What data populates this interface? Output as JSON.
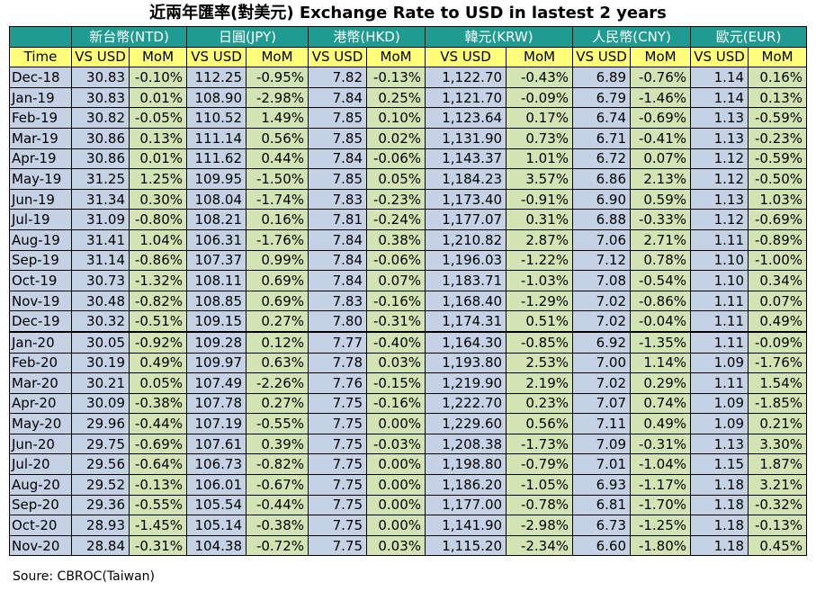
{
  "title": "近兩年匯率(對美元) Exchange Rate to USD in lastest 2 years",
  "source": "Soure: CBROC(Taiwan)",
  "chart_data": {
    "type": "table",
    "time_label": "Time",
    "sub_labels": [
      "VS USD",
      "MoM"
    ],
    "currencies": [
      "新台幣(NTD)",
      "日圓(JPY)",
      "港幣(HKD)",
      "韓元(KRW)",
      "人民幣(CNY)",
      "歐元(EUR)"
    ],
    "rows": [
      [
        "Dec-18",
        "30.83",
        "-0.10%",
        "112.25",
        "-0.95%",
        "7.82",
        "-0.13%",
        "1,122.70",
        "-0.43%",
        "6.89",
        "-0.76%",
        "1.14",
        "0.16%"
      ],
      [
        "Jan-19",
        "30.83",
        "0.01%",
        "108.90",
        "-2.98%",
        "7.84",
        "0.25%",
        "1,121.70",
        "-0.09%",
        "6.79",
        "-1.46%",
        "1.14",
        "0.13%"
      ],
      [
        "Feb-19",
        "30.82",
        "-0.05%",
        "110.52",
        "1.49%",
        "7.85",
        "0.10%",
        "1,123.64",
        "0.17%",
        "6.74",
        "-0.69%",
        "1.13",
        "-0.59%"
      ],
      [
        "Mar-19",
        "30.86",
        "0.13%",
        "111.14",
        "0.56%",
        "7.85",
        "0.02%",
        "1,131.90",
        "0.73%",
        "6.71",
        "-0.41%",
        "1.13",
        "-0.23%"
      ],
      [
        "Apr-19",
        "30.86",
        "0.01%",
        "111.62",
        "0.44%",
        "7.84",
        "-0.06%",
        "1,143.37",
        "1.01%",
        "6.72",
        "0.07%",
        "1.12",
        "-0.59%"
      ],
      [
        "May-19",
        "31.25",
        "1.25%",
        "109.95",
        "-1.50%",
        "7.85",
        "0.05%",
        "1,184.23",
        "3.57%",
        "6.86",
        "2.13%",
        "1.12",
        "-0.50%"
      ],
      [
        "Jun-19",
        "31.34",
        "0.30%",
        "108.04",
        "-1.74%",
        "7.83",
        "-0.23%",
        "1,173.40",
        "-0.91%",
        "6.90",
        "0.59%",
        "1.13",
        "1.03%"
      ],
      [
        "Jul-19",
        "31.09",
        "-0.80%",
        "108.21",
        "0.16%",
        "7.81",
        "-0.24%",
        "1,177.07",
        "0.31%",
        "6.88",
        "-0.33%",
        "1.12",
        "-0.69%"
      ],
      [
        "Aug-19",
        "31.41",
        "1.04%",
        "106.31",
        "-1.76%",
        "7.84",
        "0.38%",
        "1,210.82",
        "2.87%",
        "7.06",
        "2.71%",
        "1.11",
        "-0.89%"
      ],
      [
        "Sep-19",
        "31.14",
        "-0.86%",
        "107.37",
        "0.99%",
        "7.84",
        "-0.06%",
        "1,196.03",
        "-1.22%",
        "7.12",
        "0.78%",
        "1.10",
        "-1.00%"
      ],
      [
        "Oct-19",
        "30.73",
        "-1.32%",
        "108.11",
        "0.69%",
        "7.84",
        "0.07%",
        "1,183.71",
        "-1.03%",
        "7.08",
        "-0.54%",
        "1.10",
        "0.34%"
      ],
      [
        "Nov-19",
        "30.48",
        "-0.82%",
        "108.85",
        "0.69%",
        "7.83",
        "-0.16%",
        "1,168.40",
        "-1.29%",
        "7.02",
        "-0.86%",
        "1.11",
        "0.07%"
      ],
      [
        "Dec-19",
        "30.32",
        "-0.51%",
        "109.15",
        "0.27%",
        "7.80",
        "-0.31%",
        "1,174.31",
        "0.51%",
        "7.02",
        "-0.04%",
        "1.11",
        "0.49%"
      ],
      [
        "Jan-20",
        "30.05",
        "-0.92%",
        "109.28",
        "0.12%",
        "7.77",
        "-0.40%",
        "1,164.30",
        "-0.85%",
        "6.92",
        "-1.35%",
        "1.11",
        "-0.09%"
      ],
      [
        "Feb-20",
        "30.19",
        "0.49%",
        "109.97",
        "0.63%",
        "7.78",
        "0.03%",
        "1,193.80",
        "2.53%",
        "7.00",
        "1.14%",
        "1.09",
        "-1.76%"
      ],
      [
        "Mar-20",
        "30.21",
        "0.05%",
        "107.49",
        "-2.26%",
        "7.76",
        "-0.15%",
        "1,219.90",
        "2.19%",
        "7.02",
        "0.29%",
        "1.11",
        "1.54%"
      ],
      [
        "Apr-20",
        "30.09",
        "-0.38%",
        "107.78",
        "0.27%",
        "7.75",
        "-0.16%",
        "1,222.70",
        "0.23%",
        "7.07",
        "0.74%",
        "1.09",
        "-1.85%"
      ],
      [
        "May-20",
        "29.96",
        "-0.44%",
        "107.19",
        "-0.55%",
        "7.75",
        "0.00%",
        "1,229.60",
        "0.56%",
        "7.11",
        "0.49%",
        "1.09",
        "0.21%"
      ],
      [
        "Jun-20",
        "29.75",
        "-0.69%",
        "107.61",
        "0.39%",
        "7.75",
        "-0.03%",
        "1,208.38",
        "-1.73%",
        "7.09",
        "-0.31%",
        "1.13",
        "3.30%"
      ],
      [
        "Jul-20",
        "29.56",
        "-0.64%",
        "106.73",
        "-0.82%",
        "7.75",
        "0.00%",
        "1,198.80",
        "-0.79%",
        "7.01",
        "-1.04%",
        "1.15",
        "1.87%"
      ],
      [
        "Aug-20",
        "29.52",
        "-0.13%",
        "106.01",
        "-0.67%",
        "7.75",
        "0.00%",
        "1,186.20",
        "-1.05%",
        "6.93",
        "-1.17%",
        "1.18",
        "3.21%"
      ],
      [
        "Sep-20",
        "29.36",
        "-0.55%",
        "105.54",
        "-0.44%",
        "7.75",
        "0.00%",
        "1,177.00",
        "-0.78%",
        "6.81",
        "-1.70%",
        "1.18",
        "-0.32%"
      ],
      [
        "Oct-20",
        "28.93",
        "-1.45%",
        "105.14",
        "-0.38%",
        "7.75",
        "0.00%",
        "1,141.90",
        "-2.98%",
        "6.73",
        "-1.25%",
        "1.18",
        "-0.13%"
      ],
      [
        "Nov-20",
        "28.84",
        "-0.31%",
        "104.38",
        "-0.72%",
        "7.75",
        "0.03%",
        "1,115.20",
        "-2.34%",
        "6.60",
        "-1.80%",
        "1.18",
        "0.45%"
      ]
    ]
  }
}
